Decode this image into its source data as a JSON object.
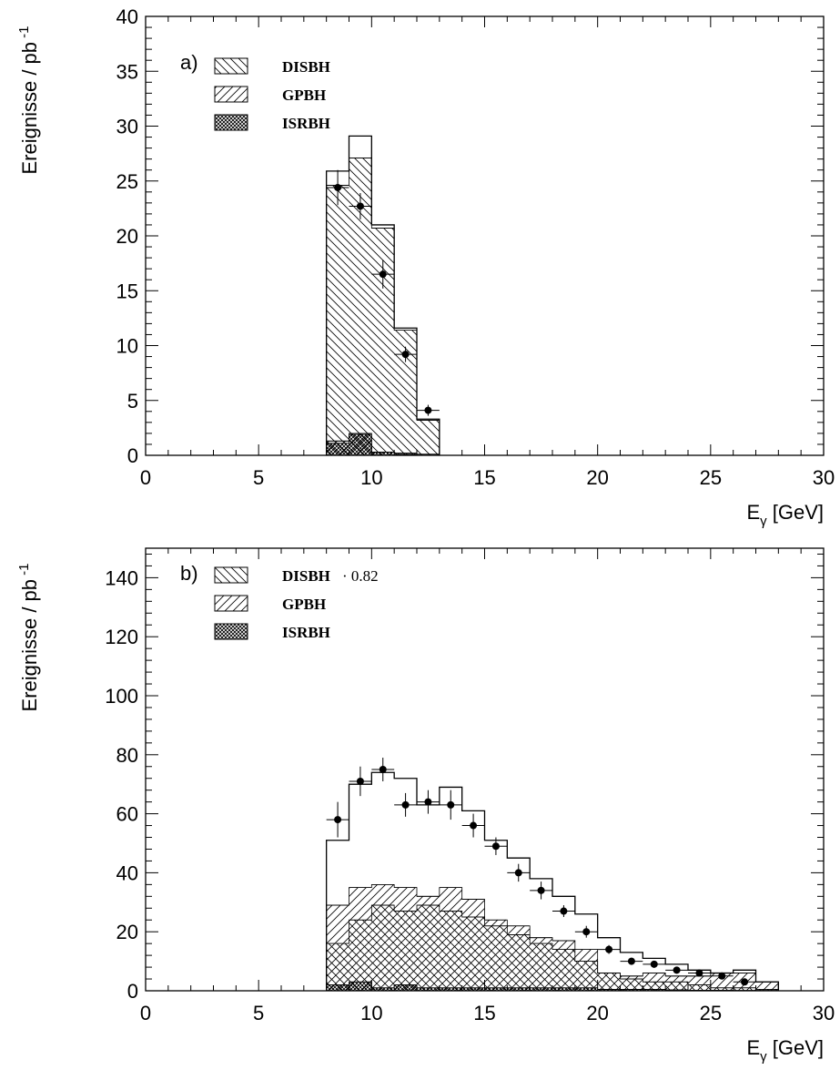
{
  "chart_data": [
    {
      "type": "histogram",
      "panel_label": "a)",
      "xlabel_main": "E",
      "xlabel_sub": "γ",
      "xlabel_unit": "[GeV]",
      "ylabel": "Ereignisse / pb",
      "ylabel_exp": "-1",
      "xlim": [
        0,
        30
      ],
      "ylim": [
        0,
        40
      ],
      "xticks": [
        "0",
        "5",
        "10",
        "15",
        "20",
        "25",
        "30"
      ],
      "yticks": [
        "0",
        "5",
        "10",
        "15",
        "20",
        "25",
        "30",
        "35",
        "40"
      ],
      "bin_edges": [
        8,
        9,
        10,
        11,
        12,
        13
      ],
      "total": [
        25.9,
        29.1,
        21.0,
        11.6,
        3.3
      ],
      "series": [
        {
          "name": "DISBH",
          "hatch": "backslash",
          "values": [
            24.6,
            27.1,
            20.7,
            11.4,
            3.2
          ]
        },
        {
          "name": "GPBH",
          "hatch": "slash",
          "values": [
            1.3,
            2.0,
            0.3,
            0.2,
            0.1
          ]
        },
        {
          "name": "ISRBH",
          "hatch": "cross",
          "values": [
            1.1,
            1.9,
            0.3,
            0.1,
            0.0
          ]
        }
      ],
      "data_points": {
        "x": [
          8.5,
          9.5,
          10.5,
          11.5,
          12.5
        ],
        "y": [
          24.4,
          22.7,
          16.5,
          9.2,
          4.1
        ],
        "yerr": [
          1.6,
          1.2,
          1.3,
          0.7,
          0.5
        ]
      },
      "legend": [
        {
          "name": "DISBH",
          "hatch": "backslash",
          "extra": ""
        },
        {
          "name": "GPBH",
          "hatch": "slash",
          "extra": ""
        },
        {
          "name": "ISRBH",
          "hatch": "cross",
          "extra": ""
        }
      ],
      "legend_position": "top-left"
    },
    {
      "type": "histogram",
      "panel_label": "b)",
      "xlabel_main": "E",
      "xlabel_sub": "γ",
      "xlabel_unit": "[GeV]",
      "ylabel": "Ereignisse / pb",
      "ylabel_exp": "-1",
      "xlim": [
        0,
        30
      ],
      "ylim": [
        0,
        150
      ],
      "xticks": [
        "0",
        "5",
        "10",
        "15",
        "20",
        "25",
        "30"
      ],
      "yticks": [
        "0",
        "20",
        "40",
        "60",
        "80",
        "100",
        "120",
        "140"
      ],
      "bin_edges": [
        8,
        9,
        10,
        11,
        12,
        13,
        14,
        15,
        16,
        17,
        18,
        19,
        20,
        21,
        22,
        23,
        24,
        25,
        26,
        27,
        28
      ],
      "total": [
        51,
        70,
        74,
        72,
        63,
        69,
        61,
        51,
        45,
        38,
        32,
        26,
        18,
        13,
        11,
        9,
        7,
        6,
        7,
        3
      ],
      "series": [
        {
          "name": "DISBH",
          "hatch": "backslash",
          "values": [
            16,
            24,
            29,
            27,
            29,
            27,
            25,
            22,
            19,
            16,
            14,
            10,
            6,
            4,
            3,
            3,
            2,
            1,
            1,
            0.5
          ]
        },
        {
          "name": "GPBH",
          "hatch": "slash",
          "values": [
            29,
            35,
            36,
            35,
            32,
            35,
            31,
            24,
            22,
            18,
            17,
            14,
            6,
            5,
            6,
            5,
            5,
            6,
            6,
            3
          ]
        },
        {
          "name": "ISRBH",
          "hatch": "cross",
          "values": [
            2,
            3,
            1,
            2,
            1,
            1,
            1,
            1,
            1,
            1,
            1,
            1,
            0.5,
            0.5,
            0.5,
            0.3,
            0.2,
            0.2,
            0.1,
            0.1
          ]
        }
      ],
      "data_points": {
        "x": [
          8.5,
          9.5,
          10.5,
          11.5,
          12.5,
          13.5,
          14.5,
          15.5,
          16.5,
          17.5,
          18.5,
          19.5,
          20.5,
          21.5,
          22.5,
          23.5,
          24.5,
          25.5,
          26.5
        ],
        "y": [
          58,
          71,
          75,
          63,
          64,
          63,
          56,
          49,
          40,
          34,
          27,
          20,
          14,
          10,
          9,
          7,
          6,
          5,
          3
        ],
        "yerr": [
          6,
          5,
          4,
          4,
          4,
          5,
          4,
          3,
          3,
          3,
          2,
          2,
          1.5,
          1.2,
          1.2,
          1,
          1,
          1,
          0.8
        ]
      },
      "legend": [
        {
          "name": "DISBH",
          "hatch": "backslash",
          "extra": "· 0.82"
        },
        {
          "name": "GPBH",
          "hatch": "slash",
          "extra": ""
        },
        {
          "name": "ISRBH",
          "hatch": "cross",
          "extra": ""
        }
      ],
      "legend_position": "top-left"
    }
  ]
}
